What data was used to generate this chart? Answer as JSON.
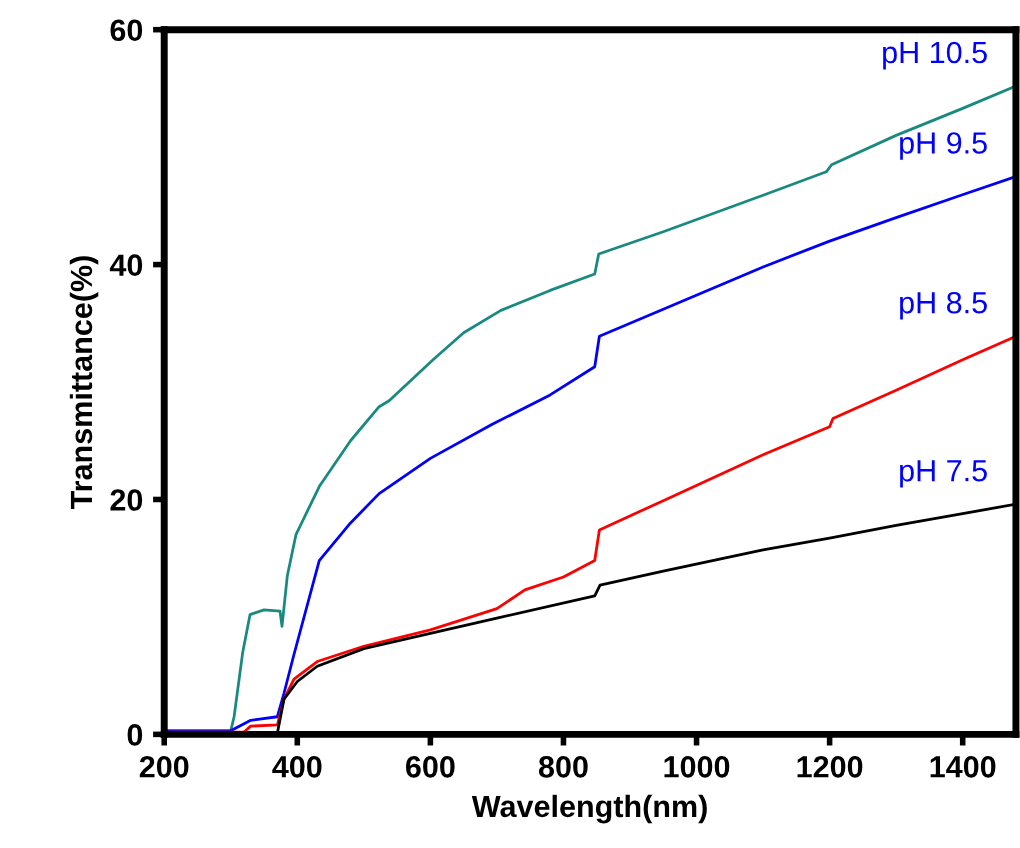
{
  "chart_data": {
    "type": "line",
    "xlabel": "Wavelength(nm)",
    "ylabel": "Transmittance(%)",
    "xlim": [
      200,
      1480
    ],
    "xticks": [
      200,
      400,
      600,
      800,
      1000,
      1200,
      1400
    ],
    "ylim": [
      0,
      60
    ],
    "yticks": [
      0,
      20,
      40,
      60
    ],
    "grid": false,
    "legend": false,
    "marker": "none",
    "line_style": "solid",
    "series": [
      {
        "name": "pH 10.5",
        "color": "#1a8a80",
        "x": [
          200,
          300,
          305,
          318,
          329,
          350,
          374,
          377,
          385,
          398,
          433,
          480,
          523,
          538,
          604,
          650,
          706,
          780,
          847,
          853,
          950,
          1100,
          1195,
          1203,
          1300,
          1400,
          1480
        ],
        "values": [
          0.3,
          0.3,
          1.5,
          7,
          10.2,
          10.6,
          10.5,
          9.2,
          13.5,
          17,
          21.1,
          25,
          27.9,
          28.4,
          31.9,
          34.2,
          36.1,
          37.8,
          39.2,
          40.9,
          42.8,
          45.9,
          47.9,
          48.5,
          51,
          53.3,
          55.2
        ]
      },
      {
        "name": "pH 9.5",
        "color": "#0000ff",
        "x": [
          200,
          300,
          330,
          370,
          380,
          395,
          433,
          480,
          523,
          600,
          693,
          780,
          847,
          854,
          950,
          1100,
          1200,
          1300,
          1392,
          1480
        ],
        "values": [
          0.3,
          0.3,
          1.2,
          1.5,
          3.5,
          6.8,
          14.8,
          18,
          20.5,
          23.5,
          26.4,
          28.9,
          31.3,
          33.9,
          36.2,
          39.8,
          42,
          44,
          45.8,
          47.5
        ]
      },
      {
        "name": "pH 8.5",
        "color": "#ff0000",
        "x": [
          200,
          320,
          330,
          370,
          380,
          395,
          430,
          500,
          600,
          700,
          742,
          800,
          847,
          854,
          950,
          1100,
          1200,
          1205,
          1300,
          1400,
          1480
        ],
        "values": [
          0.2,
          0.2,
          0.7,
          0.8,
          3,
          4.7,
          6.2,
          7.5,
          8.9,
          10.7,
          12.3,
          13.4,
          14.8,
          17.4,
          19.9,
          23.8,
          26.2,
          26.9,
          29.3,
          31.9,
          33.9
        ]
      },
      {
        "name": "pH 7.5",
        "color": "#000000",
        "x": [
          200,
          370,
          380,
          400,
          430,
          500,
          600,
          700,
          847,
          855,
          950,
          1100,
          1200,
          1300,
          1400,
          1480
        ],
        "values": [
          0.1,
          0.1,
          3,
          4.5,
          5.8,
          7.3,
          8.6,
          9.9,
          11.8,
          12.7,
          13.9,
          15.7,
          16.7,
          17.8,
          18.8,
          19.6
        ]
      }
    ]
  }
}
